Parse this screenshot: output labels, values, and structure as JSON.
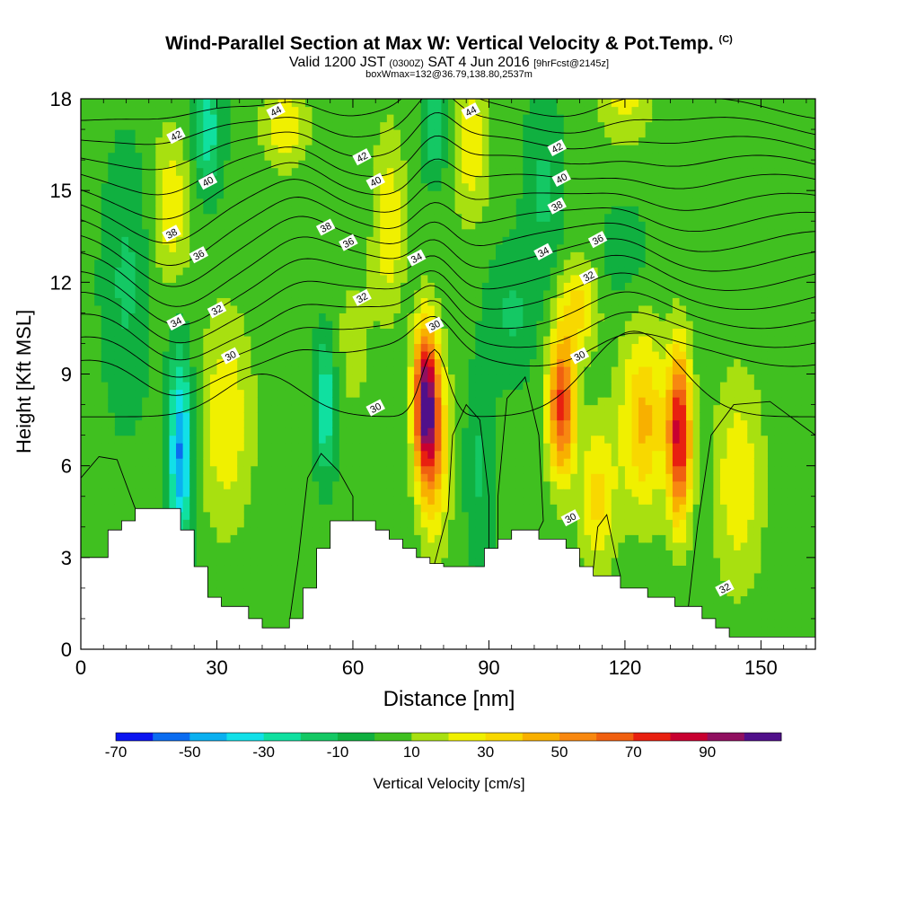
{
  "title": {
    "main": "Wind-Parallel Section at Max W: Vertical Velocity & Pot.Temp.",
    "copyright": "(C)",
    "valid_prefix": "Valid 1200 JST",
    "valid_utc": "(0300Z)",
    "valid_date": "SAT 4 Jun 2016",
    "forecast": "[9hrFcst@2145z]",
    "box": "boxWmax=132@36.79,138.80,2537m"
  },
  "chart_data": {
    "type": "heatmap",
    "xlabel": "Distance [nm]",
    "ylabel": "Height [Kft MSL]",
    "xlim": [
      0,
      162
    ],
    "ylim": [
      0,
      18
    ],
    "x_ticks": [
      0,
      30,
      60,
      90,
      120,
      150
    ],
    "y_ticks": [
      0,
      3,
      6,
      9,
      12,
      15,
      18
    ],
    "colorbar": {
      "label": "Vertical Velocity [cm/s]",
      "tick_labels": [
        "-70",
        "-50",
        "-30",
        "-10",
        "10",
        "30",
        "50",
        "70",
        "90"
      ],
      "levels": [
        -70,
        -60,
        -50,
        -40,
        -30,
        -20,
        -10,
        0,
        10,
        20,
        30,
        40,
        50,
        60,
        70,
        80,
        90,
        100
      ],
      "colors": [
        "#0a14f0",
        "#0a6cf0",
        "#0ab0f0",
        "#12e0e8",
        "#10e0a0",
        "#14c864",
        "#10b040",
        "#40c020",
        "#a8e010",
        "#f0f000",
        "#f8d800",
        "#f8b000",
        "#f88810",
        "#f06010",
        "#e82010",
        "#c80030",
        "#901060",
        "#50108a"
      ]
    },
    "velocity_features": [
      {
        "x": 76,
        "y": 8.2,
        "w": 90,
        "sx": 2.6,
        "sy": 2.4
      },
      {
        "x": 78,
        "y": 6.5,
        "w": 40,
        "sx": 3.5,
        "sy": 3.0
      },
      {
        "x": 106,
        "y": 8.0,
        "w": 70,
        "sx": 3.0,
        "sy": 2.4
      },
      {
        "x": 132,
        "y": 7.0,
        "w": 80,
        "sx": 2.6,
        "sy": 2.8
      },
      {
        "x": 124,
        "y": 7.5,
        "w": 40,
        "sx": 5.0,
        "sy": 3.0
      },
      {
        "x": 114,
        "y": 5.0,
        "w": 30,
        "sx": 4.0,
        "sy": 2.5
      },
      {
        "x": 32,
        "y": 7.5,
        "w": 25,
        "sx": 6.0,
        "sy": 3.5
      },
      {
        "x": 20,
        "y": 14.5,
        "w": 25,
        "sx": 4.0,
        "sy": 2.5
      },
      {
        "x": 45,
        "y": 17.2,
        "w": 25,
        "sx": 5.0,
        "sy": 1.5
      },
      {
        "x": 68,
        "y": 14.0,
        "w": 25,
        "sx": 3.5,
        "sy": 3.0
      },
      {
        "x": 86,
        "y": 16.5,
        "w": 25,
        "sx": 4.0,
        "sy": 2.5
      },
      {
        "x": 110,
        "y": 11.2,
        "w": 30,
        "sx": 4.0,
        "sy": 1.5
      },
      {
        "x": 145,
        "y": 5.5,
        "w": 25,
        "sx": 5.5,
        "sy": 3.5
      },
      {
        "x": 120,
        "y": 18.0,
        "w": 20,
        "sx": 6.0,
        "sy": 1.5
      },
      {
        "x": 60,
        "y": 10.0,
        "w": 10,
        "sx": 5.0,
        "sy": 3.0
      },
      {
        "x": 22,
        "y": 6.5,
        "w": -55,
        "sx": 2.6,
        "sy": 3.0
      },
      {
        "x": 54,
        "y": 8.0,
        "w": -35,
        "sx": 2.2,
        "sy": 2.2
      },
      {
        "x": 28,
        "y": 17.0,
        "w": -30,
        "sx": 3.0,
        "sy": 2.0
      },
      {
        "x": 78,
        "y": 17.0,
        "w": -25,
        "sx": 2.5,
        "sy": 1.5
      },
      {
        "x": 95,
        "y": 11.0,
        "w": -15,
        "sx": 5.0,
        "sy": 2.0
      },
      {
        "x": 120,
        "y": 13.0,
        "w": -10,
        "sx": 5.0,
        "sy": 1.5
      },
      {
        "x": 10,
        "y": 12.0,
        "w": -15,
        "sx": 5.0,
        "sy": 4.0
      },
      {
        "x": 102,
        "y": 15.0,
        "w": -15,
        "sx": 4.0,
        "sy": 3.0
      },
      {
        "x": 88,
        "y": 6.0,
        "w": -15,
        "sx": 3.0,
        "sy": 3.0
      }
    ],
    "background_w": 3,
    "terrain": [
      [
        0,
        3.0
      ],
      [
        6,
        3.0
      ],
      [
        6,
        3.9
      ],
      [
        9,
        3.9
      ],
      [
        9,
        4.2
      ],
      [
        12,
        4.2
      ],
      [
        12,
        4.6
      ],
      [
        22,
        4.6
      ],
      [
        22,
        3.9
      ],
      [
        25,
        3.9
      ],
      [
        25,
        2.7
      ],
      [
        28,
        2.7
      ],
      [
        28,
        1.7
      ],
      [
        31,
        1.7
      ],
      [
        31,
        1.4
      ],
      [
        37,
        1.4
      ],
      [
        37,
        1.0
      ],
      [
        40,
        1.0
      ],
      [
        40,
        0.7
      ],
      [
        46,
        0.7
      ],
      [
        46,
        1.0
      ],
      [
        49,
        1.0
      ],
      [
        49,
        2.0
      ],
      [
        52,
        2.0
      ],
      [
        52,
        3.3
      ],
      [
        55,
        3.3
      ],
      [
        55,
        4.2
      ],
      [
        65,
        4.2
      ],
      [
        65,
        3.9
      ],
      [
        68,
        3.9
      ],
      [
        68,
        3.6
      ],
      [
        71,
        3.6
      ],
      [
        71,
        3.3
      ],
      [
        74,
        3.3
      ],
      [
        74,
        3.0
      ],
      [
        77,
        3.0
      ],
      [
        77,
        2.8
      ],
      [
        80,
        2.8
      ],
      [
        80,
        2.7
      ],
      [
        89,
        2.7
      ],
      [
        89,
        3.3
      ],
      [
        92,
        3.3
      ],
      [
        92,
        3.6
      ],
      [
        95,
        3.6
      ],
      [
        95,
        3.9
      ],
      [
        101,
        3.9
      ],
      [
        101,
        3.6
      ],
      [
        107,
        3.6
      ],
      [
        107,
        3.3
      ],
      [
        110,
        3.3
      ],
      [
        110,
        2.7
      ],
      [
        113,
        2.7
      ],
      [
        113,
        2.4
      ],
      [
        119,
        2.4
      ],
      [
        119,
        2.0
      ],
      [
        125,
        2.0
      ],
      [
        125,
        1.7
      ],
      [
        131,
        1.7
      ],
      [
        131,
        1.4
      ],
      [
        137,
        1.4
      ],
      [
        137,
        1.0
      ],
      [
        140,
        1.0
      ],
      [
        140,
        0.7
      ],
      [
        143,
        0.7
      ],
      [
        143,
        0.4
      ],
      [
        162,
        0.4
      ]
    ],
    "theta_contours": [
      {
        "level": 30,
        "labels": [
          [
            33,
            9.6
          ],
          [
            65,
            7.9
          ],
          [
            78,
            10.6
          ],
          [
            110,
            9.6
          ],
          [
            108,
            4.3
          ]
        ]
      },
      {
        "level": 31,
        "labels": []
      },
      {
        "level": 32,
        "labels": [
          [
            30,
            11.1
          ],
          [
            62,
            11.5
          ],
          [
            112,
            12.2
          ],
          [
            142,
            2.0
          ]
        ]
      },
      {
        "level": 33,
        "labels": []
      },
      {
        "level": 34,
        "labels": [
          [
            21,
            10.7
          ],
          [
            74,
            12.8
          ],
          [
            102,
            13.0
          ]
        ]
      },
      {
        "level": 35,
        "labels": []
      },
      {
        "level": 36,
        "labels": [
          [
            26,
            12.9
          ],
          [
            59,
            13.3
          ],
          [
            114,
            13.4
          ]
        ]
      },
      {
        "level": 37,
        "labels": []
      },
      {
        "level": 38,
        "labels": [
          [
            20,
            13.6
          ],
          [
            54,
            13.8
          ],
          [
            105,
            14.5
          ]
        ]
      },
      {
        "level": 39,
        "labels": []
      },
      {
        "level": 40,
        "labels": [
          [
            28,
            15.3
          ],
          [
            65,
            15.3
          ],
          [
            106,
            15.4
          ]
        ]
      },
      {
        "level": 41,
        "labels": []
      },
      {
        "level": 42,
        "labels": [
          [
            21,
            16.8
          ],
          [
            62,
            16.1
          ],
          [
            105,
            16.4
          ]
        ]
      },
      {
        "level": 43,
        "labels": []
      },
      {
        "level": 44,
        "labels": [
          [
            43,
            17.6
          ],
          [
            86,
            17.6
          ]
        ]
      }
    ]
  }
}
